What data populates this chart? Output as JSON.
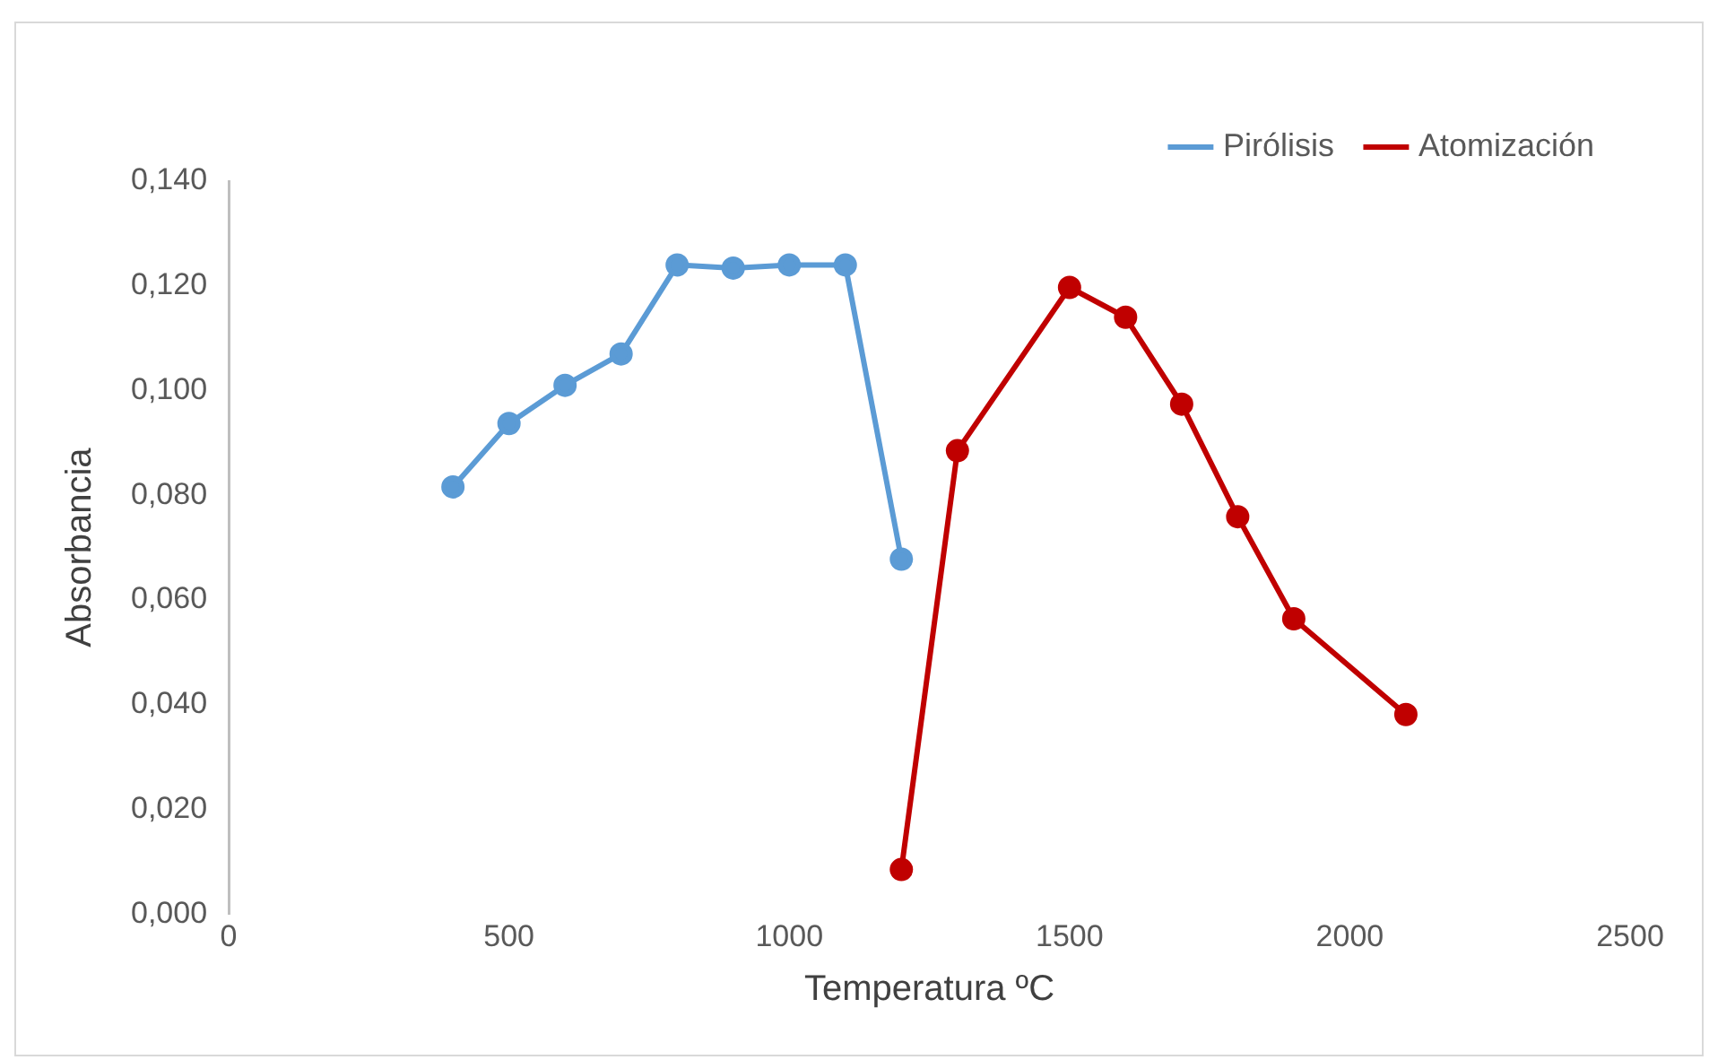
{
  "chart_data": {
    "type": "line",
    "xlabel": "Temperatura ºC",
    "ylabel": "Absorbancia",
    "legend": "top right",
    "marker": "circle",
    "grid": false,
    "xlim": [
      0,
      2500
    ],
    "xticks": [
      0,
      500,
      1000,
      1500,
      2000,
      2500
    ],
    "ylim": [
      0,
      0.14
    ],
    "yticks": [
      {
        "value": 0,
        "label": "0,000"
      },
      {
        "value": 0.02,
        "label": "0,020"
      },
      {
        "value": 0.04,
        "label": "0,040"
      },
      {
        "value": 0.06,
        "label": "0,060"
      },
      {
        "value": 0.08,
        "label": "0,080"
      },
      {
        "value": 0.1,
        "label": "0,100"
      },
      {
        "value": 0.12,
        "label": "0,120"
      },
      {
        "value": 0.14,
        "label": "0,140"
      }
    ],
    "series": [
      {
        "name": "Pirólisis",
        "color": "#5b9bd5",
        "x": [
          400,
          500,
          600,
          700,
          800,
          900,
          1000,
          1100,
          1200
        ],
        "values": [
          0.0816,
          0.0937,
          0.101,
          0.107,
          0.124,
          0.1234,
          0.124,
          0.124,
          0.0678
        ]
      },
      {
        "name": "Atomización",
        "color": "#c00000",
        "x": [
          1200,
          1300,
          1500,
          1600,
          1700,
          1800,
          1900,
          2100
        ],
        "values": [
          0.0085,
          0.0885,
          0.1197,
          0.114,
          0.0974,
          0.0759,
          0.0564,
          0.0381
        ]
      }
    ]
  }
}
